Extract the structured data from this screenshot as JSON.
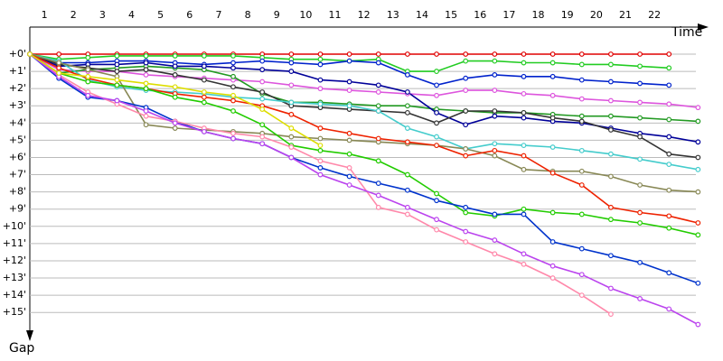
{
  "chart_data": {
    "type": "line",
    "xlabel": "Time",
    "ylabel": "Gap",
    "x": [
      0,
      1,
      2,
      3,
      4,
      5,
      6,
      7,
      8,
      9,
      10,
      11,
      12,
      13,
      14,
      15,
      16,
      17,
      18,
      19,
      20,
      21,
      22,
      23
    ],
    "xlim": [
      0,
      23.3
    ],
    "xticks": [
      {
        "value": 0.5,
        "label": "1"
      },
      {
        "value": 1.5,
        "label": "2"
      },
      {
        "value": 2.5,
        "label": "3"
      },
      {
        "value": 3.5,
        "label": "4"
      },
      {
        "value": 4.5,
        "label": "5"
      },
      {
        "value": 5.5,
        "label": "6"
      },
      {
        "value": 6.5,
        "label": "7"
      },
      {
        "value": 7.5,
        "label": "8"
      },
      {
        "value": 8.5,
        "label": "9"
      },
      {
        "value": 9.5,
        "label": "10"
      },
      {
        "value": 10.5,
        "label": "11"
      },
      {
        "value": 11.5,
        "label": "12"
      },
      {
        "value": 12.5,
        "label": "13"
      },
      {
        "value": 13.5,
        "label": "14"
      },
      {
        "value": 14.5,
        "label": "15"
      },
      {
        "value": 15.5,
        "label": "16"
      },
      {
        "value": 16.5,
        "label": "17"
      },
      {
        "value": 17.5,
        "label": "18"
      },
      {
        "value": 18.5,
        "label": "19"
      },
      {
        "value": 19.5,
        "label": "20"
      },
      {
        "value": 20.5,
        "label": "21"
      },
      {
        "value": 21.5,
        "label": "22"
      }
    ],
    "ylim": [
      0,
      16.3
    ],
    "yticks": [
      {
        "value": 0,
        "label": "+0'"
      },
      {
        "value": 1,
        "label": "+1'"
      },
      {
        "value": 2,
        "label": "+2'"
      },
      {
        "value": 3,
        "label": "+3'"
      },
      {
        "value": 4,
        "label": "+4'"
      },
      {
        "value": 5,
        "label": "+5'"
      },
      {
        "value": 6,
        "label": "+6'"
      },
      {
        "value": 7,
        "label": "+7'"
      },
      {
        "value": 8,
        "label": "+8'"
      },
      {
        "value": 9,
        "label": "+9'"
      },
      {
        "value": 10,
        "label": "+10'"
      },
      {
        "value": 11,
        "label": "+11'"
      },
      {
        "value": 12,
        "label": "+12'"
      },
      {
        "value": 13,
        "label": "+13'"
      },
      {
        "value": 14,
        "label": "+14'"
      },
      {
        "value": 15,
        "label": "+15'"
      }
    ],
    "y_inverted": true,
    "grid": true,
    "series": [
      {
        "color": "#e00000",
        "values": [
          0,
          0,
          0,
          0,
          0,
          0,
          0,
          0,
          0,
          0,
          0,
          0,
          0,
          0,
          0,
          0,
          0,
          0,
          0,
          0,
          0,
          0,
          0,
          null
        ]
      },
      {
        "color": "#22cc22",
        "values": [
          0,
          0.3,
          0.2,
          0.1,
          0.1,
          0.1,
          0.1,
          0.1,
          0.2,
          0.3,
          0.3,
          0.4,
          0.3,
          1.0,
          1.0,
          0.4,
          0.4,
          0.5,
          0.5,
          0.6,
          0.6,
          0.7,
          0.8,
          null
        ]
      },
      {
        "color": "#0022cc",
        "values": [
          0,
          0.5,
          0.5,
          0.4,
          0.4,
          0.5,
          0.6,
          0.5,
          0.4,
          0.5,
          0.6,
          0.4,
          0.5,
          1.2,
          1.8,
          1.4,
          1.2,
          1.3,
          1.3,
          1.5,
          1.6,
          1.7,
          1.8,
          null
        ]
      },
      {
        "color": "#dd55dd",
        "values": [
          0,
          0.9,
          1.0,
          1.0,
          1.2,
          1.3,
          1.4,
          1.5,
          1.6,
          1.8,
          2.0,
          2.1,
          2.2,
          2.3,
          2.4,
          2.1,
          2.1,
          2.3,
          2.4,
          2.6,
          2.7,
          2.8,
          2.9,
          3.1
        ]
      },
      {
        "color": "#229922",
        "values": [
          0,
          1.1,
          0.9,
          0.8,
          0.7,
          0.8,
          0.9,
          1.3,
          2.3,
          2.8,
          2.8,
          2.9,
          3.0,
          3.0,
          3.2,
          3.3,
          3.4,
          3.4,
          3.5,
          3.6,
          3.6,
          3.7,
          3.8,
          3.9
        ]
      },
      {
        "color": "#000099",
        "values": [
          0,
          0.7,
          0.6,
          0.6,
          0.5,
          0.7,
          0.7,
          0.8,
          0.9,
          1.0,
          1.5,
          1.6,
          1.8,
          2.2,
          3.4,
          4.1,
          3.6,
          3.7,
          3.9,
          4.0,
          4.3,
          4.6,
          4.8,
          5.1
        ]
      },
      {
        "color": "#333333",
        "values": [
          0,
          0.6,
          0.8,
          1.0,
          0.9,
          1.2,
          1.5,
          1.9,
          2.2,
          3.0,
          3.1,
          3.2,
          3.3,
          3.4,
          4.0,
          3.3,
          3.3,
          3.4,
          3.7,
          3.9,
          4.4,
          4.8,
          5.8,
          6.0
        ]
      },
      {
        "color": "#44cccc",
        "values": [
          0,
          0.4,
          1.5,
          1.9,
          2.1,
          2.2,
          2.3,
          2.5,
          2.6,
          2.8,
          2.9,
          3.0,
          3.3,
          4.3,
          4.8,
          5.5,
          5.2,
          5.3,
          5.4,
          5.6,
          5.8,
          6.1,
          6.4,
          6.7
        ]
      },
      {
        "color": "#888855",
        "values": [
          0,
          0.5,
          0.9,
          1.3,
          4.1,
          4.3,
          4.4,
          4.5,
          4.6,
          4.8,
          4.9,
          5.0,
          5.1,
          5.2,
          5.3,
          5.5,
          5.9,
          6.7,
          6.8,
          6.8,
          7.1,
          7.6,
          7.9,
          8.0
        ]
      },
      {
        "color": "#ee2200",
        "values": [
          0,
          0.8,
          1.4,
          1.8,
          2.0,
          2.3,
          2.5,
          2.7,
          3.0,
          3.5,
          4.3,
          4.6,
          4.9,
          5.1,
          5.3,
          5.9,
          5.6,
          5.9,
          6.9,
          7.6,
          8.9,
          9.2,
          9.4,
          9.8
        ]
      },
      {
        "color": "#22cc00",
        "values": [
          0,
          1.1,
          1.6,
          1.8,
          2.0,
          2.5,
          2.8,
          3.3,
          4.1,
          5.3,
          5.6,
          5.8,
          6.2,
          7.0,
          8.1,
          9.2,
          9.4,
          9.0,
          9.2,
          9.3,
          9.6,
          9.8,
          10.1,
          10.5
        ]
      },
      {
        "color": "#0033cc",
        "values": [
          0,
          1.4,
          2.5,
          2.7,
          3.1,
          3.9,
          4.5,
          4.9,
          5.2,
          6.0,
          6.6,
          7.1,
          7.5,
          7.9,
          8.5,
          8.9,
          9.3,
          9.3,
          10.9,
          11.3,
          11.7,
          12.1,
          12.7,
          13.3
        ]
      },
      {
        "color": "#ff88aa",
        "values": [
          0,
          1.2,
          2.2,
          2.9,
          3.6,
          3.9,
          4.3,
          4.6,
          4.8,
          5.4,
          6.2,
          6.6,
          8.9,
          9.3,
          10.2,
          10.9,
          11.6,
          12.2,
          13.0,
          14.0,
          15.1,
          null,
          null,
          null
        ]
      },
      {
        "color": "#bb44ee",
        "values": [
          0,
          1.3,
          2.4,
          2.7,
          3.3,
          4.0,
          4.5,
          4.9,
          5.2,
          6.0,
          7.0,
          7.6,
          8.2,
          8.9,
          9.6,
          10.3,
          10.8,
          11.6,
          12.3,
          12.8,
          13.6,
          14.2,
          14.8,
          15.7
        ]
      },
      {
        "color": "#dddd00",
        "values": [
          0,
          1.1,
          1.3,
          1.5,
          1.7,
          1.9,
          2.2,
          2.4,
          3.2,
          4.3,
          5.3,
          null,
          null,
          null,
          null,
          null,
          null,
          null,
          null,
          null,
          null,
          null,
          null,
          null
        ]
      }
    ]
  }
}
